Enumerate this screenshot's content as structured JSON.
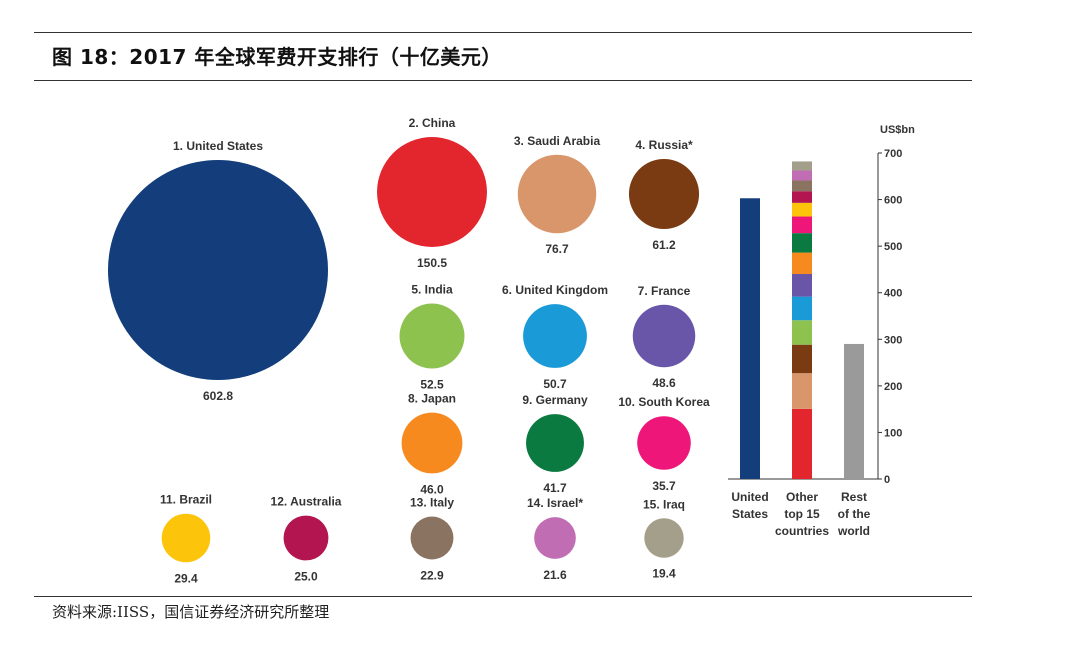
{
  "header": {
    "title": "图 18：2017 年全球军费开支排行（十亿美元）"
  },
  "footer": {
    "source": "资料来源:IISS，国信证券经济研究所整理"
  },
  "chart_data": [
    {
      "type": "bubble",
      "items": [
        {
          "label": "1. United States",
          "value": 602.8,
          "color": "#133d7b"
        },
        {
          "label": "2. China",
          "value": 150.5,
          "color": "#e3262d"
        },
        {
          "label": "3. Saudi Arabia",
          "value": 76.7,
          "color": "#d9966b"
        },
        {
          "label": "4. Russia*",
          "value": 61.2,
          "color": "#7b3b12"
        },
        {
          "label": "5. India",
          "value": 52.5,
          "color": "#8dc24f"
        },
        {
          "label": "6. United Kingdom",
          "value": 50.7,
          "color": "#1a9ad6"
        },
        {
          "label": "7. France",
          "value": 48.6,
          "color": "#6a56a9"
        },
        {
          "label": "8. Japan",
          "value": 46.0,
          "color": "#f68a1f"
        },
        {
          "label": "9. Germany",
          "value": 41.7,
          "color": "#0b7a41"
        },
        {
          "label": "10. South Korea",
          "value": 35.7,
          "color": "#ef1679"
        },
        {
          "label": "11. Brazil",
          "value": 29.4,
          "color": "#fcc40b"
        },
        {
          "label": "12. Australia",
          "value": 25.0,
          "color": "#b2154f"
        },
        {
          "label": "13. Italy",
          "value": 22.9,
          "color": "#8b7361"
        },
        {
          "label": "14. Israel*",
          "value": 21.6,
          "color": "#c06db4"
        },
        {
          "label": "15. Iraq",
          "value": 19.4,
          "color": "#a39f8b"
        }
      ]
    },
    {
      "type": "stacked-bar",
      "unit": "US$bn",
      "ylim": [
        0,
        700
      ],
      "yticks": [
        0,
        100,
        200,
        300,
        400,
        500,
        600,
        700
      ],
      "grid": false,
      "categories": [
        "United States",
        "Other top 15 countries",
        "Rest of the world"
      ],
      "bars": [
        {
          "category": "United States",
          "value": 602.8,
          "color": "#133d7b"
        },
        {
          "category": "Other top 15 countries",
          "value": 681.9,
          "stacked_from": "bubble items 2–15"
        },
        {
          "category": "Rest of the world",
          "value": 290,
          "color": "#9a9a9a"
        }
      ]
    }
  ]
}
